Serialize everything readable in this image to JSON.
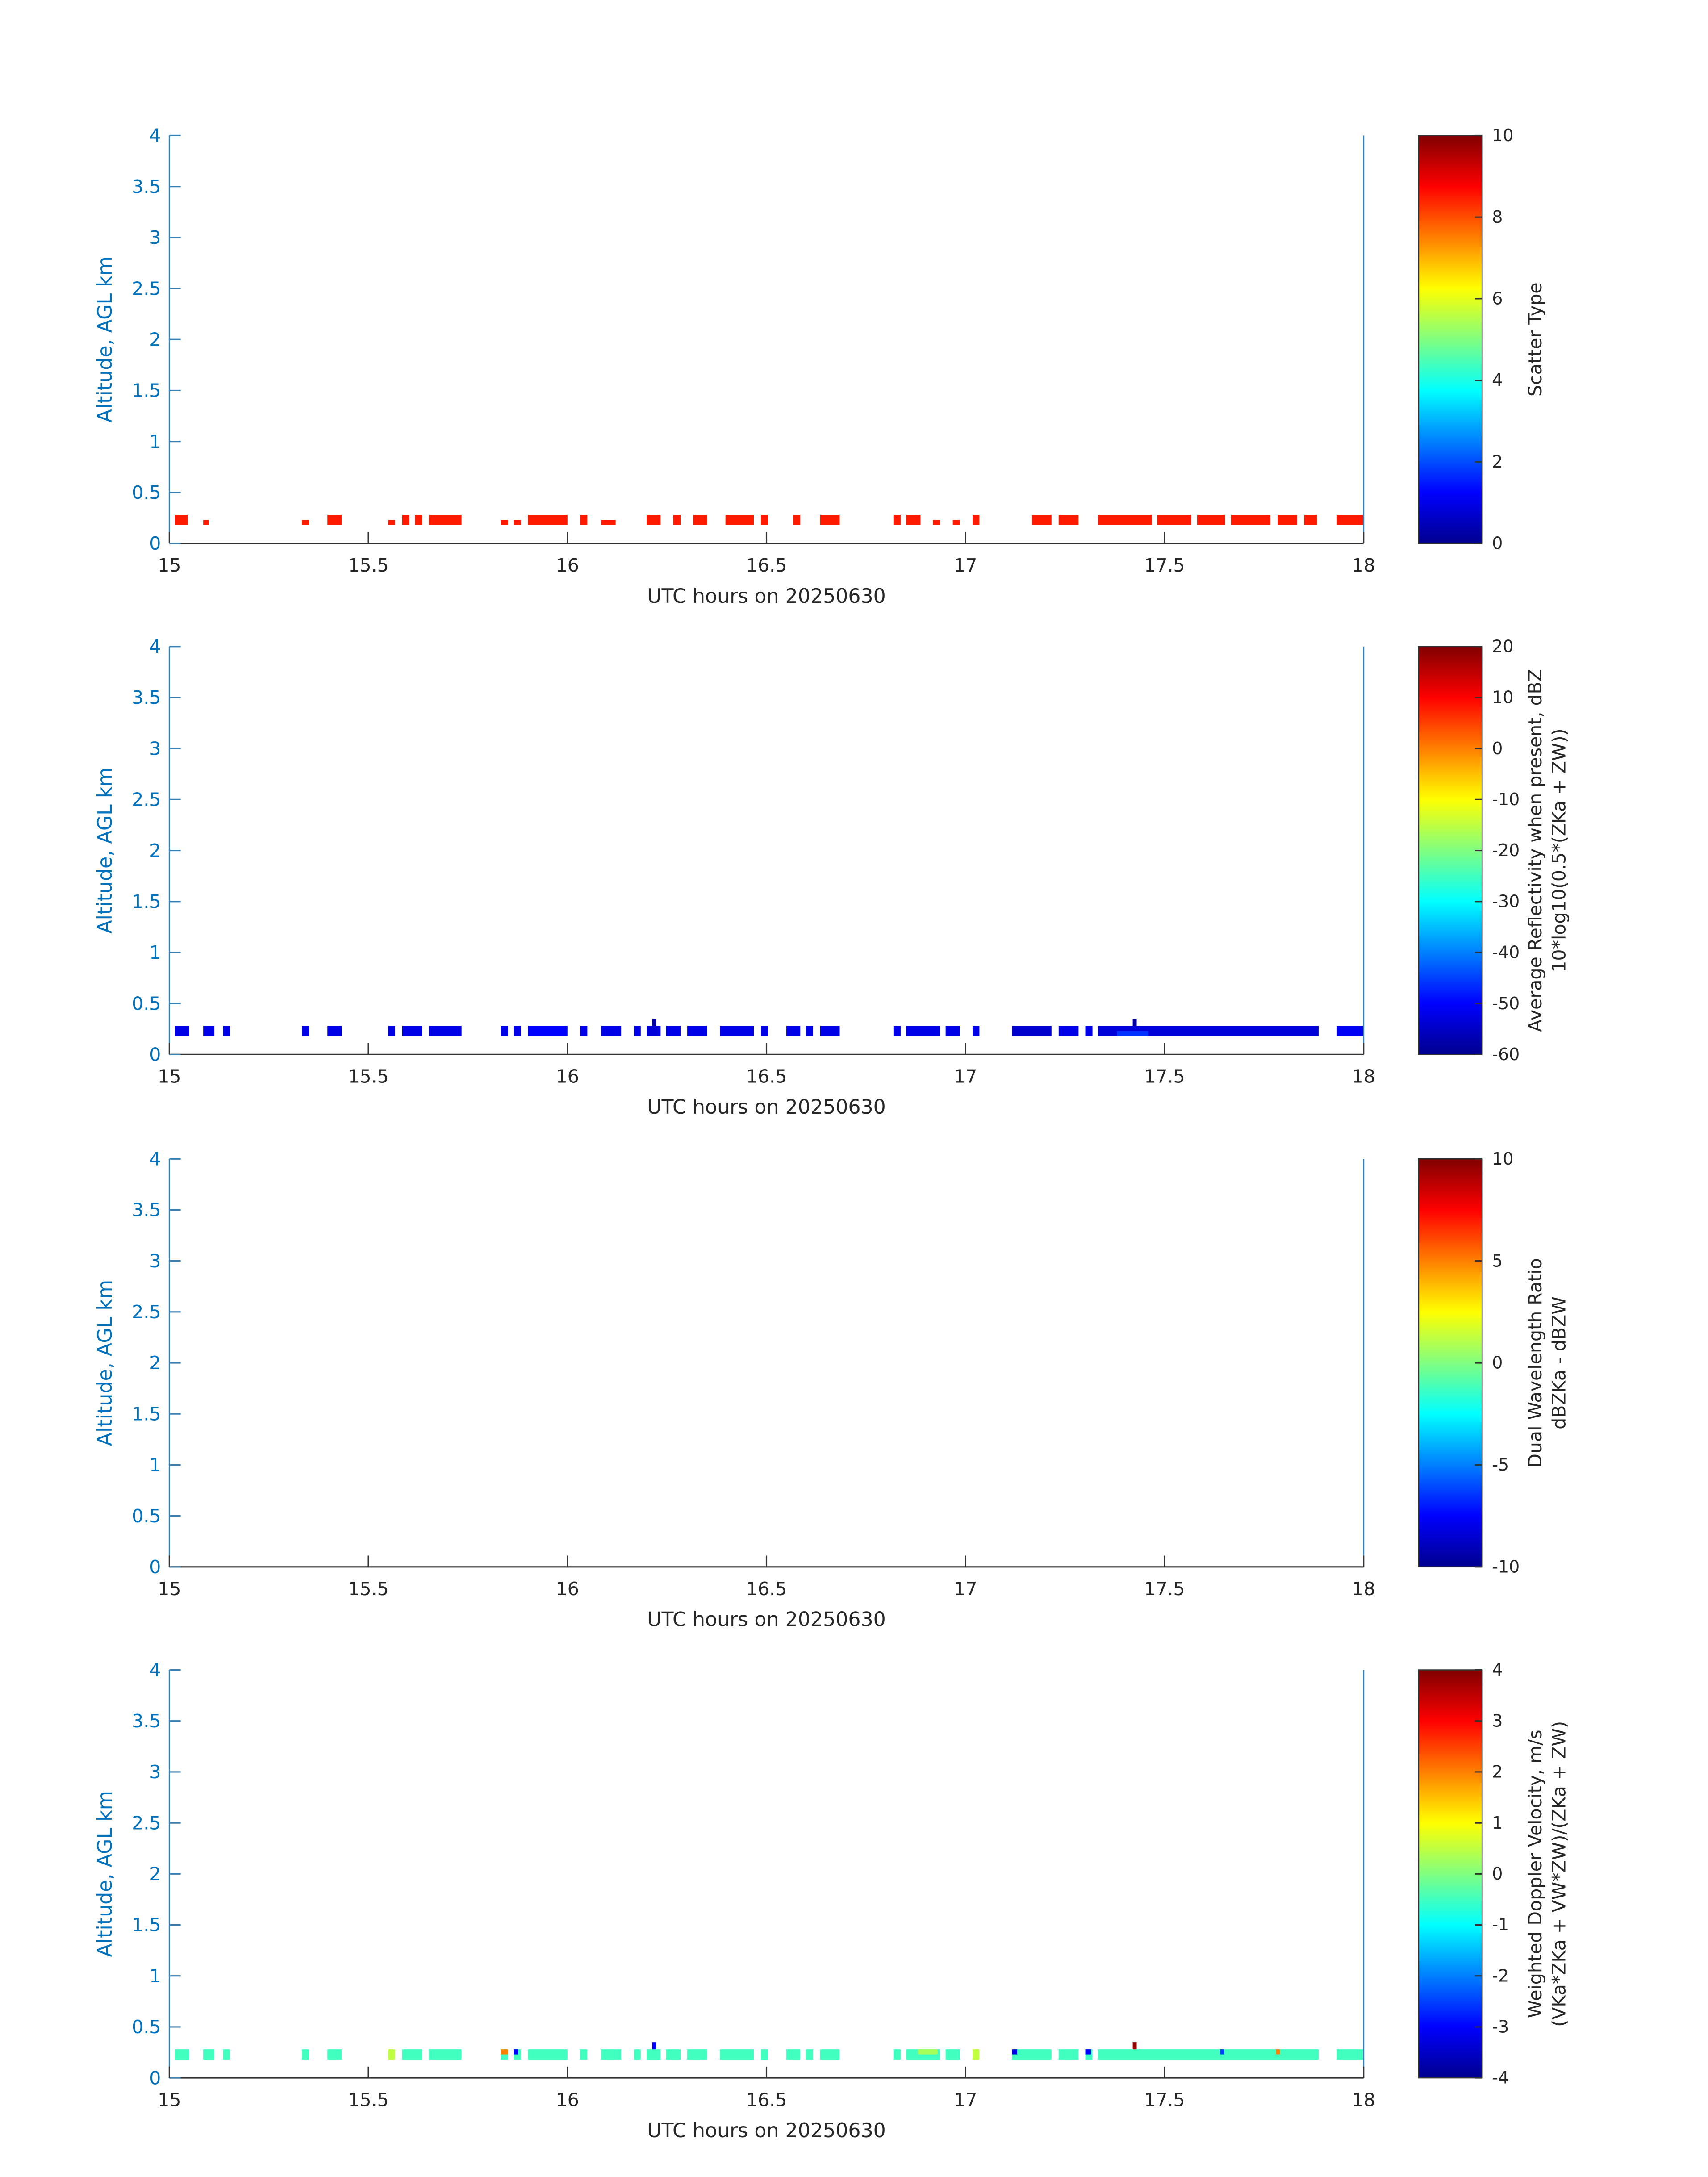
{
  "chart_data": [
    {
      "type": "heatmap",
      "colormap": "jet",
      "xlabel": "UTC hours on 20250630",
      "ylabel": "Altitude, AGL km",
      "colorbar_label": [
        "Scatter Type"
      ],
      "xlim": [
        15,
        18
      ],
      "xticks": [
        15,
        15.5,
        16,
        16.5,
        17,
        17.5,
        18
      ],
      "ylim": [
        0,
        4
      ],
      "yticks": [
        0,
        0.5,
        1,
        1.5,
        2,
        2.5,
        3,
        3.5,
        4
      ],
      "clim": [
        0,
        10
      ],
      "cticks": [
        0,
        2,
        4,
        6,
        8,
        10
      ],
      "cells": [
        [
          15.014,
          15.046,
          0.18,
          0.28,
          8.5
        ],
        [
          15.085,
          15.099,
          0.18,
          0.23,
          8.5
        ],
        [
          15.333,
          15.351,
          0.18,
          0.23,
          8.5
        ],
        [
          15.397,
          15.433,
          0.18,
          0.28,
          8.5
        ],
        [
          15.55,
          15.567,
          0.18,
          0.23,
          8.5
        ],
        [
          15.585,
          15.603,
          0.18,
          0.28,
          8.5
        ],
        [
          15.617,
          15.635,
          0.18,
          0.28,
          8.5
        ],
        [
          15.652,
          15.734,
          0.18,
          0.28,
          8.5
        ],
        [
          15.833,
          15.851,
          0.18,
          0.23,
          8.5
        ],
        [
          15.865,
          15.883,
          0.18,
          0.23,
          8.5
        ],
        [
          15.901,
          16.0,
          0.18,
          0.28,
          8.5
        ],
        [
          16.032,
          16.05,
          0.18,
          0.28,
          8.5
        ],
        [
          16.085,
          16.121,
          0.18,
          0.23,
          8.5
        ],
        [
          16.199,
          16.234,
          0.18,
          0.28,
          8.5
        ],
        [
          16.266,
          16.284,
          0.18,
          0.28,
          8.5
        ],
        [
          16.316,
          16.351,
          0.18,
          0.28,
          8.5
        ],
        [
          16.397,
          16.468,
          0.18,
          0.28,
          8.5
        ],
        [
          16.486,
          16.504,
          0.18,
          0.28,
          8.5
        ],
        [
          16.567,
          16.585,
          0.18,
          0.28,
          8.5
        ],
        [
          16.635,
          16.684,
          0.18,
          0.28,
          8.5
        ],
        [
          16.819,
          16.837,
          0.18,
          0.28,
          8.5
        ],
        [
          16.851,
          16.887,
          0.18,
          0.28,
          8.5
        ],
        [
          16.918,
          16.936,
          0.18,
          0.23,
          8.5
        ],
        [
          16.968,
          16.986,
          0.18,
          0.23,
          8.5
        ],
        [
          17.018,
          17.035,
          0.18,
          0.28,
          8.5
        ],
        [
          17.167,
          17.216,
          0.18,
          0.28,
          8.5
        ],
        [
          17.234,
          17.284,
          0.18,
          0.28,
          8.5
        ],
        [
          17.333,
          17.468,
          0.18,
          0.28,
          8.5
        ],
        [
          17.482,
          17.567,
          0.18,
          0.28,
          8.5
        ],
        [
          17.582,
          17.652,
          0.18,
          0.28,
          8.5
        ],
        [
          17.667,
          17.766,
          0.18,
          0.28,
          8.5
        ],
        [
          17.784,
          17.833,
          0.18,
          0.28,
          8.5
        ],
        [
          17.851,
          17.883,
          0.18,
          0.28,
          8.5
        ],
        [
          17.933,
          18.0,
          0.18,
          0.28,
          8.5
        ]
      ]
    },
    {
      "type": "heatmap",
      "colormap": "jet",
      "xlabel": "UTC hours on 20250630",
      "ylabel": "Altitude, AGL km",
      "colorbar_label": [
        "Average Reflectivity when present, dBZ",
        "10*log10(0.5*(ZKa + ZW))"
      ],
      "xlim": [
        15,
        18
      ],
      "xticks": [
        15,
        15.5,
        16,
        16.5,
        17,
        17.5,
        18
      ],
      "ylim": [
        0,
        4
      ],
      "yticks": [
        0,
        0.5,
        1,
        1.5,
        2,
        2.5,
        3,
        3.5,
        4
      ],
      "clim": [
        -60,
        20
      ],
      "cticks": [
        -60,
        -50,
        -40,
        -30,
        -20,
        -10,
        0,
        10,
        20
      ],
      "cells": [
        [
          15.014,
          15.05,
          0.18,
          0.28,
          -52
        ],
        [
          15.085,
          15.113,
          0.18,
          0.28,
          -52
        ],
        [
          15.135,
          15.152,
          0.18,
          0.28,
          -52
        ],
        [
          15.333,
          15.351,
          0.18,
          0.28,
          -52
        ],
        [
          15.397,
          15.433,
          0.18,
          0.28,
          -52
        ],
        [
          15.55,
          15.567,
          0.18,
          0.28,
          -52
        ],
        [
          15.585,
          15.635,
          0.18,
          0.28,
          -52
        ],
        [
          15.652,
          15.734,
          0.18,
          0.28,
          -52
        ],
        [
          15.833,
          15.851,
          0.18,
          0.28,
          -52
        ],
        [
          15.865,
          15.883,
          0.18,
          0.28,
          -52
        ],
        [
          15.901,
          16.0,
          0.18,
          0.28,
          -50
        ],
        [
          16.032,
          16.05,
          0.18,
          0.28,
          -52
        ],
        [
          16.085,
          16.135,
          0.18,
          0.28,
          -52
        ],
        [
          16.167,
          16.184,
          0.18,
          0.28,
          -52
        ],
        [
          16.199,
          16.234,
          0.18,
          0.28,
          -53
        ],
        [
          16.248,
          16.284,
          0.18,
          0.28,
          -52
        ],
        [
          16.301,
          16.351,
          0.18,
          0.28,
          -52
        ],
        [
          16.383,
          16.468,
          0.18,
          0.28,
          -52
        ],
        [
          16.486,
          16.504,
          0.18,
          0.28,
          -52
        ],
        [
          16.55,
          16.585,
          0.18,
          0.28,
          -52
        ],
        [
          16.599,
          16.617,
          0.18,
          0.28,
          -52
        ],
        [
          16.635,
          16.684,
          0.18,
          0.28,
          -52
        ],
        [
          16.819,
          16.837,
          0.18,
          0.28,
          -52
        ],
        [
          16.851,
          16.936,
          0.18,
          0.28,
          -52
        ],
        [
          16.95,
          16.986,
          0.18,
          0.28,
          -52
        ],
        [
          17.018,
          17.035,
          0.18,
          0.28,
          -52
        ],
        [
          17.117,
          17.216,
          0.18,
          0.28,
          -54
        ],
        [
          17.234,
          17.284,
          0.18,
          0.28,
          -52
        ],
        [
          17.301,
          17.319,
          0.18,
          0.28,
          -52
        ],
        [
          17.333,
          17.887,
          0.18,
          0.28,
          -53
        ],
        [
          17.933,
          18.0,
          0.18,
          0.28,
          -51
        ],
        [
          17.38,
          17.46,
          0.18,
          0.23,
          -46
        ],
        [
          16.213,
          16.223,
          0.28,
          0.35,
          -57
        ],
        [
          17.42,
          17.43,
          0.28,
          0.35,
          -57
        ]
      ]
    },
    {
      "type": "heatmap",
      "colormap": "jet",
      "xlabel": "UTC hours on 20250630",
      "ylabel": "Altitude, AGL km",
      "colorbar_label": [
        "Dual Wavelength Ratio",
        "dBZKa - dBZW"
      ],
      "xlim": [
        15,
        18
      ],
      "xticks": [
        15,
        15.5,
        16,
        16.5,
        17,
        17.5,
        18
      ],
      "ylim": [
        0,
        4
      ],
      "yticks": [
        0,
        0.5,
        1,
        1.5,
        2,
        2.5,
        3,
        3.5,
        4
      ],
      "clim": [
        -10,
        10
      ],
      "cticks": [
        -10,
        -5,
        0,
        5,
        10
      ],
      "cells": []
    },
    {
      "type": "heatmap",
      "colormap": "jet",
      "xlabel": "UTC hours on 20250630",
      "ylabel": "Altitude, AGL km",
      "colorbar_label": [
        "Weighted Doppler Velocity, m/s",
        "(VKa*ZKa + VW*ZW)/(ZKa + ZW)"
      ],
      "xlim": [
        15,
        18
      ],
      "xticks": [
        15,
        15.5,
        16,
        16.5,
        17,
        17.5,
        18
      ],
      "ylim": [
        0,
        4
      ],
      "yticks": [
        0,
        0.5,
        1,
        1.5,
        2,
        2.5,
        3,
        3.5,
        4
      ],
      "clim": [
        -4,
        4
      ],
      "cticks": [
        -4,
        -3,
        -2,
        -1,
        0,
        1,
        2,
        3,
        4
      ],
      "cells": [
        [
          15.014,
          15.05,
          0.18,
          0.28,
          -0.5
        ],
        [
          15.085,
          15.113,
          0.18,
          0.28,
          -0.5
        ],
        [
          15.135,
          15.152,
          0.18,
          0.28,
          -0.5
        ],
        [
          15.333,
          15.351,
          0.18,
          0.28,
          -0.5
        ],
        [
          15.397,
          15.433,
          0.18,
          0.28,
          -0.5
        ],
        [
          15.55,
          15.567,
          0.18,
          0.28,
          0.5
        ],
        [
          15.585,
          15.635,
          0.18,
          0.28,
          -0.5
        ],
        [
          15.652,
          15.734,
          0.18,
          0.28,
          -0.5
        ],
        [
          15.833,
          15.851,
          0.18,
          0.28,
          -0.5
        ],
        [
          15.865,
          15.883,
          0.18,
          0.28,
          -0.5
        ],
        [
          15.901,
          16.0,
          0.18,
          0.28,
          -0.5
        ],
        [
          16.032,
          16.05,
          0.18,
          0.28,
          -0.5
        ],
        [
          16.085,
          16.135,
          0.18,
          0.28,
          -0.5
        ],
        [
          16.167,
          16.184,
          0.18,
          0.28,
          -0.5
        ],
        [
          16.199,
          16.234,
          0.18,
          0.28,
          -0.5
        ],
        [
          16.248,
          16.284,
          0.18,
          0.28,
          -0.5
        ],
        [
          16.301,
          16.351,
          0.18,
          0.28,
          -0.5
        ],
        [
          16.383,
          16.468,
          0.18,
          0.28,
          -0.5
        ],
        [
          16.486,
          16.504,
          0.18,
          0.28,
          -0.5
        ],
        [
          16.55,
          16.585,
          0.18,
          0.28,
          -0.5
        ],
        [
          16.599,
          16.617,
          0.18,
          0.28,
          -0.5
        ],
        [
          16.635,
          16.684,
          0.18,
          0.28,
          -0.5
        ],
        [
          16.819,
          16.837,
          0.18,
          0.28,
          -0.5
        ],
        [
          16.851,
          16.936,
          0.18,
          0.28,
          -0.5
        ],
        [
          16.95,
          16.986,
          0.18,
          0.28,
          -0.5
        ],
        [
          17.018,
          17.035,
          0.18,
          0.28,
          0.5
        ],
        [
          17.117,
          17.216,
          0.18,
          0.28,
          -0.5
        ],
        [
          17.234,
          17.284,
          0.18,
          0.28,
          -0.5
        ],
        [
          17.301,
          17.319,
          0.18,
          0.28,
          -0.5
        ],
        [
          17.333,
          17.887,
          0.18,
          0.28,
          -0.5
        ],
        [
          17.933,
          18.0,
          0.18,
          0.28,
          -0.5
        ],
        [
          15.833,
          15.851,
          0.23,
          0.28,
          2
        ],
        [
          15.865,
          15.876,
          0.23,
          0.28,
          -3
        ],
        [
          16.213,
          16.223,
          0.28,
          0.35,
          -3
        ],
        [
          16.88,
          16.93,
          0.23,
          0.28,
          0.3
        ],
        [
          17.117,
          17.13,
          0.23,
          0.28,
          -3.2
        ],
        [
          17.301,
          17.315,
          0.23,
          0.28,
          -3
        ],
        [
          17.42,
          17.43,
          0.28,
          0.35,
          3.8
        ],
        [
          17.64,
          17.65,
          0.23,
          0.28,
          -2.5
        ],
        [
          17.78,
          17.79,
          0.23,
          0.28,
          2
        ]
      ]
    }
  ]
}
